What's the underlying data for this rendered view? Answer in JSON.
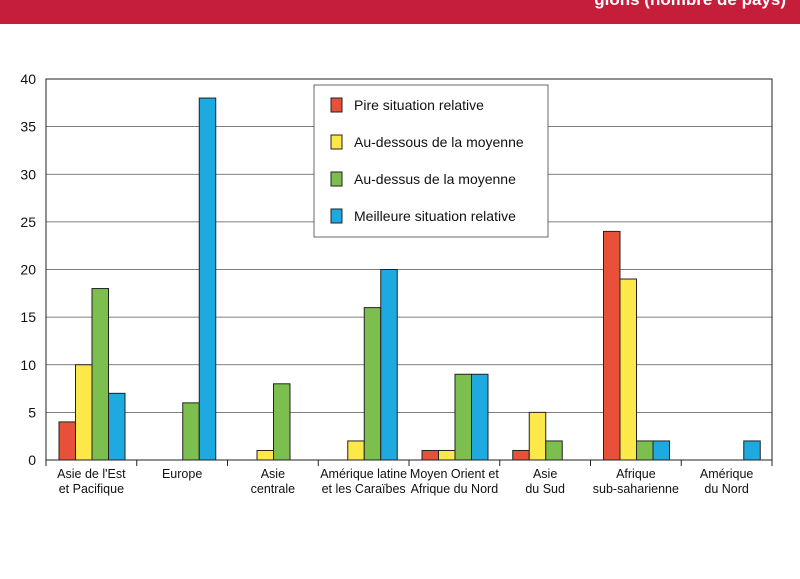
{
  "header": {
    "text_left": ",",
    "text_right": "gions (nombre de pays)",
    "bg_color": "#c41e3a"
  },
  "chart_data": {
    "type": "bar",
    "title": "",
    "xlabel": "",
    "ylabel": "",
    "ylim": [
      0,
      40
    ],
    "yticks": [
      0,
      5,
      10,
      15,
      20,
      25,
      30,
      35,
      40
    ],
    "grid": true,
    "legend_position": "top-center",
    "categories": [
      [
        "Asie de l'Est",
        "et Pacifique"
      ],
      [
        "Europe"
      ],
      [
        "Asie",
        "centrale"
      ],
      [
        "Amérique latine",
        "et les Caraïbes"
      ],
      [
        "Moyen Orient et",
        "Afrique du Nord"
      ],
      [
        "Asie",
        "du Sud"
      ],
      [
        "Afrique",
        "sub-saharienne"
      ],
      [
        "Amérique",
        "du Nord"
      ]
    ],
    "series": [
      {
        "name": "Pire situation relative",
        "color": "#e8503a",
        "values": [
          4,
          0,
          0,
          0,
          1,
          1,
          24,
          0
        ]
      },
      {
        "name": "Au-dessous de la moyenne",
        "color": "#fde84a",
        "values": [
          10,
          0,
          1,
          2,
          1,
          5,
          19,
          0
        ]
      },
      {
        "name": "Au-dessus de la moyenne",
        "color": "#7dbf4e",
        "values": [
          18,
          6,
          8,
          16,
          9,
          2,
          2,
          0
        ]
      },
      {
        "name": "Meilleure situation relative",
        "color": "#1fa9e1",
        "values": [
          7,
          38,
          0,
          20,
          9,
          0,
          2,
          2
        ]
      }
    ]
  }
}
